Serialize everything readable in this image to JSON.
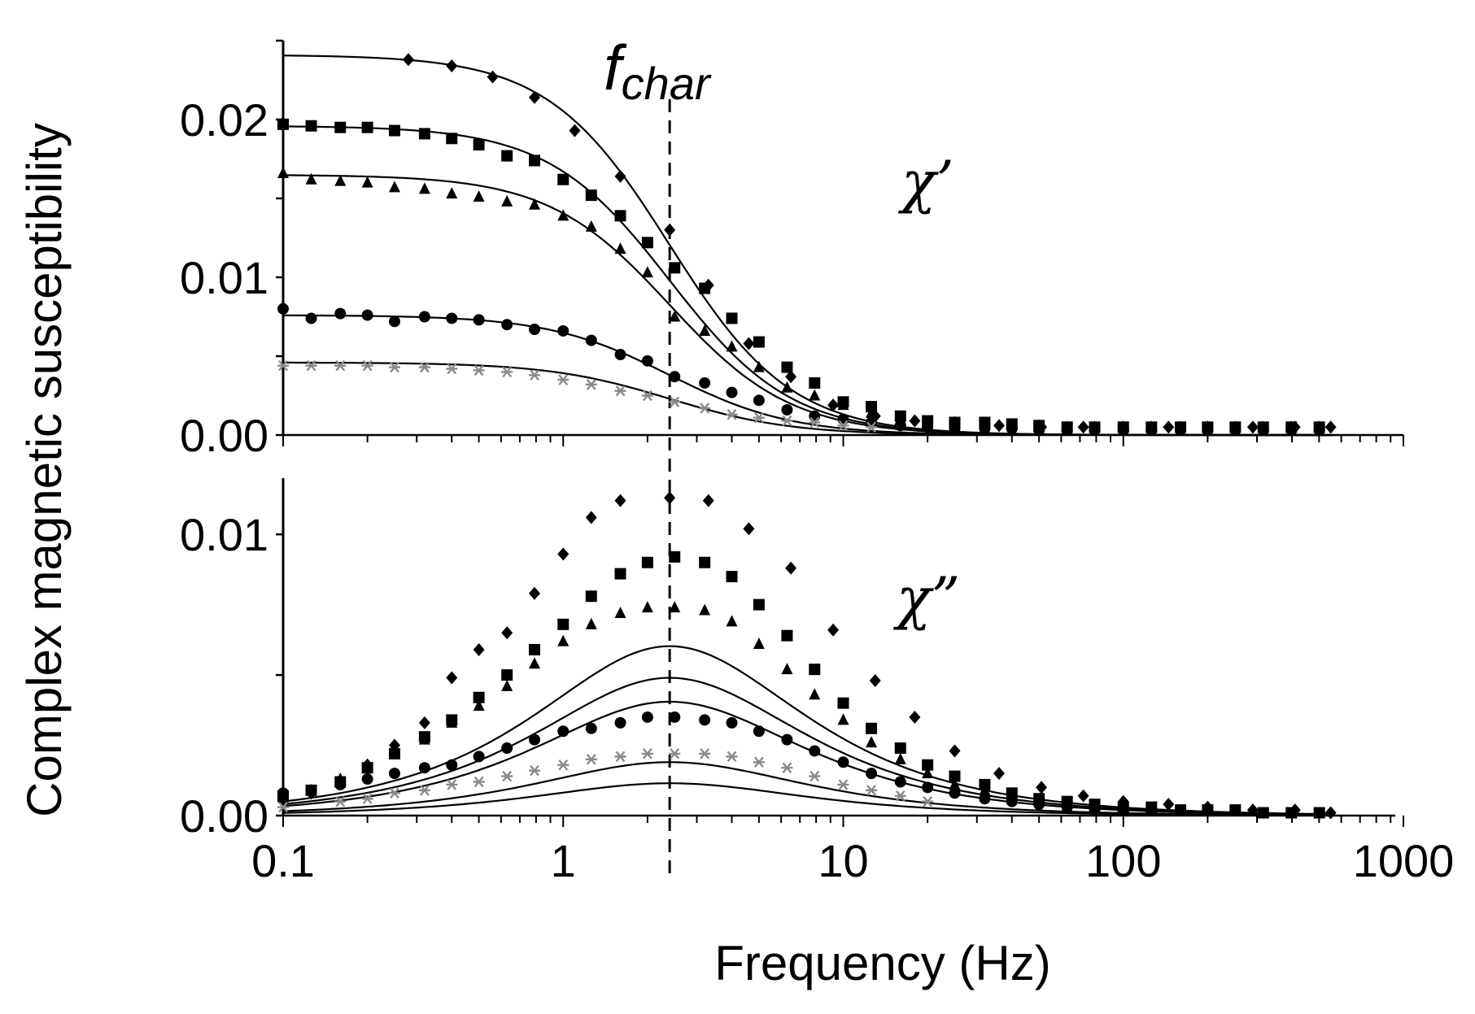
{
  "chart_data": {
    "type": "line",
    "title": "",
    "xlabel": "Frequency (Hz)",
    "ylabel": "Complex magnetic susceptibility",
    "x_scale": "log",
    "xlim": [
      0.1,
      1000
    ],
    "x_ticks": [
      0.1,
      1,
      10,
      100,
      1000
    ],
    "x_tick_labels": [
      "0.1",
      "1",
      "10",
      "100",
      "1000"
    ],
    "f_char_label": "f",
    "f_char_subscript": "char",
    "f_char_value": 2.4,
    "marker_colors": {
      "default": "#000000",
      "star": "#8a8a8a"
    },
    "panels": [
      {
        "name": "chi-prime",
        "annotation": "χ’",
        "ylim": [
          0,
          0.025
        ],
        "y_ticks": [
          0,
          0.01,
          0.02
        ],
        "y_tick_labels": [
          "0.00",
          "0.01",
          "0.02"
        ],
        "series": [
          {
            "marker": "diamond",
            "amplitude": 0.0241,
            "x": [
              0.28,
              0.4,
              0.56,
              0.79,
              1.1,
              1.6,
              2.4,
              3.3,
              4.6,
              6.5,
              9.2,
              13,
              18,
              25,
              36,
              51,
              72,
              100,
              145,
              200,
              290,
              410,
              550
            ],
            "values": [
              0.0238,
              0.0234,
              0.0227,
              0.0214,
              0.0193,
              0.0164,
              0.013,
              0.0095,
              0.0058,
              0.0037,
              0.0019,
              0.0012,
              0.0009,
              0.0007,
              0.0006,
              0.0005,
              0.0005,
              0.0005,
              0.0005,
              0.0005,
              0.0005,
              0.0005,
              0.0005
            ]
          },
          {
            "marker": "square",
            "amplitude": 0.0196,
            "x": [
              0.1,
              0.126,
              0.16,
              0.2,
              0.25,
              0.32,
              0.4,
              0.5,
              0.63,
              0.79,
              1.0,
              1.26,
              1.6,
              2.0,
              2.5,
              3.2,
              4.0,
              5.0,
              6.3,
              7.9,
              10,
              12.6,
              16,
              20,
              25,
              32,
              40,
              50,
              63,
              79,
              100,
              126,
              160,
              200,
              251,
              316,
              398,
              501
            ],
            "values": [
              0.0197,
              0.0196,
              0.0195,
              0.0195,
              0.0193,
              0.0191,
              0.0188,
              0.0184,
              0.0177,
              0.0174,
              0.0162,
              0.0152,
              0.0139,
              0.0122,
              0.0106,
              0.0093,
              0.0074,
              0.0059,
              0.0043,
              0.0033,
              0.0021,
              0.0018,
              0.0012,
              0.0009,
              0.0008,
              0.0008,
              0.0007,
              0.0006,
              0.0005,
              0.0005,
              0.0005,
              0.0005,
              0.0005,
              0.0005,
              0.0005,
              0.0005,
              0.0005,
              0.0005
            ]
          },
          {
            "marker": "triangle",
            "amplitude": 0.0165,
            "x": [
              0.1,
              0.126,
              0.16,
              0.2,
              0.25,
              0.32,
              0.4,
              0.5,
              0.63,
              0.79,
              1.0,
              1.26,
              1.6,
              2.0,
              2.5,
              3.2,
              4.0,
              5.0,
              6.3,
              7.9,
              10,
              12.6,
              16,
              20,
              25,
              32,
              40,
              50,
              63,
              79,
              100,
              126,
              160,
              200,
              251,
              316,
              398,
              501
            ],
            "values": [
              0.0166,
              0.0162,
              0.0161,
              0.016,
              0.0157,
              0.0156,
              0.0153,
              0.0151,
              0.0148,
              0.0146,
              0.0139,
              0.0132,
              0.0118,
              0.0103,
              0.0075,
              0.0066,
              0.0056,
              0.0043,
              0.003,
              0.0025,
              0.0019,
              0.0014,
              0.001,
              0.0008,
              0.0008,
              0.0007,
              0.0006,
              0.0006,
              0.0005,
              0.0005,
              0.0005,
              0.0005,
              0.0005,
              0.0005,
              0.0005,
              0.0005,
              0.0005,
              0.0005
            ]
          },
          {
            "marker": "circle",
            "amplitude": 0.0076,
            "x": [
              0.1,
              0.126,
              0.16,
              0.2,
              0.25,
              0.32,
              0.4,
              0.5,
              0.63,
              0.79,
              1.0,
              1.26,
              1.6,
              2.0,
              2.5,
              3.2,
              4.0,
              5.0,
              6.3,
              7.9,
              10,
              12.6,
              16,
              20,
              25,
              32,
              40,
              50,
              63,
              79,
              100,
              126,
              160,
              200,
              251,
              316,
              398,
              501
            ],
            "values": [
              0.008,
              0.0074,
              0.0077,
              0.0076,
              0.0072,
              0.0075,
              0.0074,
              0.0073,
              0.007,
              0.0067,
              0.0066,
              0.006,
              0.0051,
              0.0047,
              0.0037,
              0.0033,
              0.0027,
              0.0022,
              0.0016,
              0.0012,
              0.001,
              0.0008,
              0.0006,
              0.0005,
              0.0004,
              0.0004,
              0.0004,
              0.0003,
              0.0003,
              0.0003,
              0.0003,
              0.0003,
              0.0003,
              0.0003,
              0.0003,
              0.0003,
              0.0003,
              0.0003
            ]
          },
          {
            "marker": "star",
            "amplitude": 0.0046,
            "x": [
              0.1,
              0.126,
              0.16,
              0.2,
              0.25,
              0.32,
              0.4,
              0.5,
              0.63,
              0.79,
              1.0,
              1.26,
              1.6,
              2.0,
              2.5,
              3.2,
              4.0,
              5.0,
              6.3,
              7.9,
              10,
              12.6
            ],
            "values": [
              0.0044,
              0.0044,
              0.0044,
              0.0044,
              0.0043,
              0.0043,
              0.0042,
              0.0041,
              0.004,
              0.0038,
              0.0035,
              0.0032,
              0.0028,
              0.0025,
              0.0021,
              0.0017,
              0.0013,
              0.0011,
              0.0009,
              0.0008,
              0.0006,
              0.0005
            ]
          }
        ]
      },
      {
        "name": "chi-double-prime",
        "annotation": "χ”",
        "ylim": [
          0,
          0.012
        ],
        "y_ticks": [
          0,
          0.005,
          0.01
        ],
        "y_tick_labels": [
          "0.00",
          "",
          "0.01"
        ],
        "series": [
          {
            "marker": "diamond",
            "amplitude": 0.01205,
            "x": [
              0.1,
              0.126,
              0.16,
              0.2,
              0.25,
              0.32,
              0.4,
              0.5,
              0.63,
              0.79,
              1.0,
              1.26,
              1.6,
              2.4,
              3.3,
              4.6,
              6.5,
              9.2,
              13,
              18,
              25,
              36,
              51,
              72,
              100,
              145,
              200,
              290,
              410,
              550
            ],
            "values": [
              0.0005,
              0.0008,
              0.0012,
              0.0018,
              0.0025,
              0.0033,
              0.0049,
              0.0059,
              0.0065,
              0.0079,
              0.0093,
              0.0106,
              0.0112,
              0.0113,
              0.0112,
              0.0102,
              0.0088,
              0.0066,
              0.0048,
              0.0035,
              0.0023,
              0.0015,
              0.001,
              0.0007,
              0.0005,
              0.0004,
              0.0003,
              0.0002,
              0.0002,
              0.0001
            ]
          },
          {
            "marker": "square",
            "amplitude": 0.0098,
            "x": [
              0.1,
              0.126,
              0.16,
              0.2,
              0.25,
              0.32,
              0.4,
              0.5,
              0.63,
              0.79,
              1.0,
              1.26,
              1.6,
              2.0,
              2.5,
              3.2,
              4.0,
              5.0,
              6.3,
              7.9,
              10,
              12.6,
              16,
              20,
              25,
              32,
              40,
              50,
              63,
              79,
              100,
              126,
              160,
              200,
              251,
              316,
              398,
              501
            ],
            "values": [
              0.0007,
              0.0009,
              0.0012,
              0.0017,
              0.0022,
              0.0028,
              0.0034,
              0.0042,
              0.005,
              0.0059,
              0.0068,
              0.0078,
              0.0086,
              0.009,
              0.0092,
              0.009,
              0.0085,
              0.0075,
              0.0064,
              0.0052,
              0.004,
              0.0031,
              0.0024,
              0.0018,
              0.0014,
              0.0011,
              0.0008,
              0.0006,
              0.0005,
              0.0004,
              0.0003,
              0.0003,
              0.0002,
              0.0002,
              0.0002,
              0.0001,
              0.0001,
              0.0001
            ]
          },
          {
            "marker": "triangle",
            "amplitude": 0.0081,
            "x": [
              0.1,
              0.126,
              0.16,
              0.2,
              0.25,
              0.32,
              0.4,
              0.5,
              0.63,
              0.79,
              1.0,
              1.26,
              1.6,
              2.0,
              2.5,
              3.2,
              4.0,
              5.0,
              6.3,
              7.9,
              10,
              12.6,
              16,
              20,
              25,
              32,
              40,
              50,
              63
            ],
            "values": [
              0.0007,
              0.0009,
              0.0013,
              0.0017,
              0.0022,
              0.0027,
              0.0033,
              0.0039,
              0.0046,
              0.0054,
              0.0062,
              0.0068,
              0.0072,
              0.0074,
              0.0074,
              0.0073,
              0.0069,
              0.0061,
              0.0052,
              0.0043,
              0.0034,
              0.0026,
              0.002,
              0.0015,
              0.0011,
              0.0009,
              0.0007,
              0.0005,
              0.0004
            ]
          },
          {
            "marker": "circle",
            "amplitude": 0.0038,
            "x": [
              0.1,
              0.126,
              0.16,
              0.2,
              0.25,
              0.32,
              0.4,
              0.5,
              0.63,
              0.79,
              1.0,
              1.26,
              1.6,
              2.0,
              2.5,
              3.2,
              4.0,
              5.0,
              6.3,
              7.9,
              10,
              12.6,
              16,
              20,
              25,
              32,
              40,
              50,
              63,
              79,
              100
            ],
            "values": [
              0.0008,
              0.0009,
              0.0011,
              0.0013,
              0.0015,
              0.0017,
              0.0018,
              0.0021,
              0.0024,
              0.0027,
              0.003,
              0.0031,
              0.0033,
              0.0035,
              0.0035,
              0.0034,
              0.0033,
              0.003,
              0.0027,
              0.0023,
              0.0019,
              0.0015,
              0.0012,
              0.001,
              0.0008,
              0.0006,
              0.0005,
              0.0004,
              0.0003,
              0.0002,
              0.0002
            ]
          },
          {
            "marker": "star",
            "amplitude": 0.0023,
            "x": [
              0.1,
              0.16,
              0.2,
              0.25,
              0.32,
              0.4,
              0.5,
              0.63,
              0.79,
              1.0,
              1.26,
              1.6,
              2.0,
              2.5,
              3.2,
              4.0,
              5.0,
              6.3,
              7.9,
              10,
              12.6,
              16,
              20
            ],
            "values": [
              0.0003,
              0.0005,
              0.0006,
              0.0008,
              0.0009,
              0.0011,
              0.0012,
              0.0014,
              0.0016,
              0.0018,
              0.002,
              0.0021,
              0.0022,
              0.0022,
              0.0022,
              0.0021,
              0.0019,
              0.0017,
              0.0014,
              0.0011,
              0.0009,
              0.0007,
              0.0005
            ]
          }
        ]
      }
    ]
  }
}
